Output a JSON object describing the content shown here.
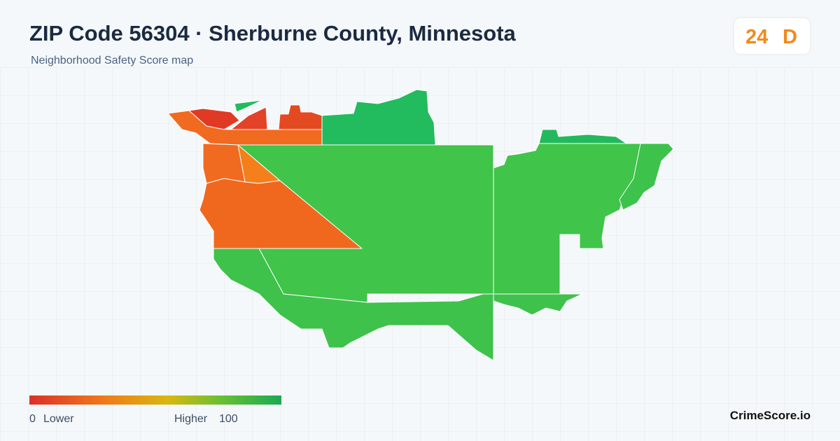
{
  "header": {
    "title": "ZIP Code 56304 · Sherburne County, Minnesota",
    "subtitle": "Neighborhood Safety Score map"
  },
  "badge": {
    "score": 24,
    "grade": "D"
  },
  "legend": {
    "min": 0,
    "min_label": "Lower",
    "max_label": "Higher",
    "max": 100
  },
  "footer": {
    "brand": "CrimeScore.io"
  }
}
